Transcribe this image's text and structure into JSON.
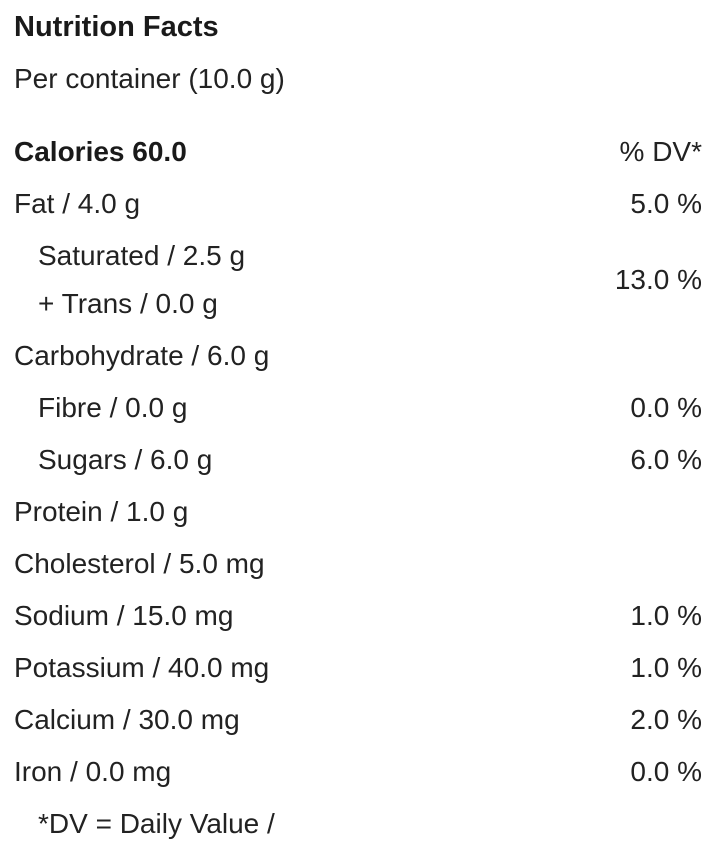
{
  "title": "Nutrition Facts",
  "serving": "Per container (10.0 g)",
  "calories": {
    "label": "Calories 60.0",
    "dv_header": "% DV*"
  },
  "rows": {
    "fat": {
      "label": "Fat / 4.0 g",
      "dv": "5.0 %"
    },
    "saturated_trans": {
      "label_saturated": "Saturated / 2.5 g",
      "label_trans": "+ Trans / 0.0 g",
      "dv": "13.0 %"
    },
    "carbohydrate": {
      "label": "Carbohydrate / 6.0 g",
      "dv": ""
    },
    "fibre": {
      "label": "Fibre / 0.0 g",
      "dv": "0.0 %"
    },
    "sugars": {
      "label": "Sugars / 6.0 g",
      "dv": "6.0 %"
    },
    "protein": {
      "label": "Protein / 1.0 g",
      "dv": ""
    },
    "cholesterol": {
      "label": "Cholesterol / 5.0 mg",
      "dv": ""
    },
    "sodium": {
      "label": "Sodium / 15.0 mg",
      "dv": "1.0 %"
    },
    "potassium": {
      "label": "Potassium / 40.0 mg",
      "dv": "1.0 %"
    },
    "calcium": {
      "label": "Calcium / 30.0 mg",
      "dv": "2.0 %"
    },
    "iron": {
      "label": "Iron / 0.0 mg",
      "dv": "0.0 %"
    }
  },
  "footnote": "*DV = Daily Value /"
}
